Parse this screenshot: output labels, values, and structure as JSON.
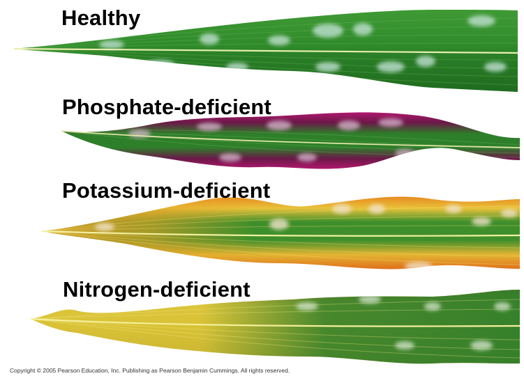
{
  "figure": {
    "leaves": [
      {
        "id": "healthy",
        "label": "Healthy",
        "colors": {
          "base": "#2f8a2a",
          "dark": "#1f6b1f",
          "edge": "#3f9a35",
          "spot": "#bfe0d5",
          "midrib": "#e8edb0"
        }
      },
      {
        "id": "phosphate",
        "label": "Phosphate-deficient",
        "colors": {
          "base": "#2e7f2a",
          "dark": "#6b1848",
          "edge": "#b0186e",
          "spot": "#d9b7cf",
          "midrib": "#e3e6a8"
        }
      },
      {
        "id": "potassium",
        "label": "Potassium-deficient",
        "colors": {
          "base": "#3e8f2b",
          "dark": "#2a7a24",
          "edge": "#e78a20",
          "spot": "#f1e2c8",
          "midrib": "#f2f0a0"
        }
      },
      {
        "id": "nitrogen",
        "label": "Nitrogen-deficient",
        "colors": {
          "base": "#d9c236",
          "dark": "#2e7d2a",
          "edge": "#d96a1c",
          "spot": "#d9e7d0",
          "midrib": "#f5ef9a"
        }
      }
    ],
    "copyright": "Copyright © 2005 Pearson Education, Inc. Publishing as Pearson Benjamin Cummings. All rights reserved."
  }
}
